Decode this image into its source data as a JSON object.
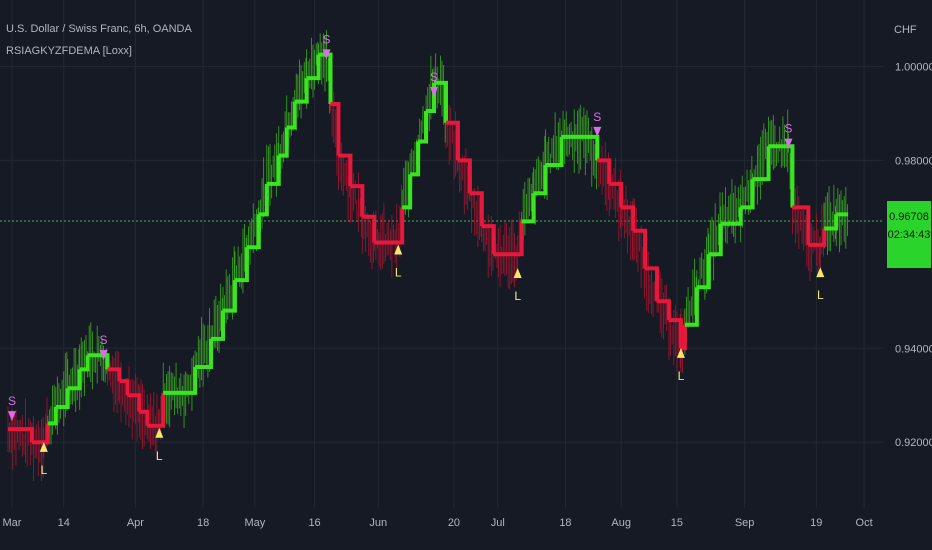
{
  "header": {
    "title": "U.S. Dollar / Swiss Franc, 6h, OANDA",
    "indicator": "RSIAGKYZFDEMA [Loxx]",
    "currency": "CHF"
  },
  "last_price": {
    "value": "0.96708",
    "countdown": "02:34:43"
  },
  "colors": {
    "background": "#161a25",
    "bull": "#39e51f",
    "bear": "#e8173c",
    "long_marker": "#f5e86e",
    "short_marker": "#d96ee8",
    "grid": "#232834"
  },
  "chart_data": {
    "type": "line",
    "title": "U.S. Dollar / Swiss Franc, 6h, OANDA",
    "y_axis": {
      "range": [
        0.906,
        1.012
      ],
      "ticks": [
        "1.00000",
        "0.98000",
        "0.94000",
        "0.92000"
      ],
      "tick_values": [
        1.0,
        0.98,
        0.94,
        0.92
      ]
    },
    "x_axis": {
      "ticks": [
        "Mar",
        "14",
        "Apr",
        "18",
        "May",
        "16",
        "Jun",
        "20",
        "Jul",
        "18",
        "Aug",
        "15",
        "Sep",
        "19",
        "Oct"
      ],
      "tick_dates": [
        "2022-03-01",
        "2022-03-14",
        "2022-04-01",
        "2022-04-18",
        "2022-05-01",
        "2022-05-16",
        "2022-06-01",
        "2022-06-20",
        "2022-07-01",
        "2022-07-18",
        "2022-08-01",
        "2022-08-15",
        "2022-09-01",
        "2022-09-19",
        "2022-10-01"
      ]
    },
    "signals": [
      {
        "label": "S",
        "type": "short",
        "date": "2022-03-01",
        "price": 0.9245
      },
      {
        "label": "L",
        "type": "long",
        "date": "2022-03-09",
        "price": 0.9205
      },
      {
        "label": "S",
        "type": "short",
        "date": "2022-03-24",
        "price": 0.9375
      },
      {
        "label": "L",
        "type": "long",
        "date": "2022-04-07",
        "price": 0.9235
      },
      {
        "label": "S",
        "type": "short",
        "date": "2022-05-19",
        "price": 1.0015
      },
      {
        "label": "L",
        "type": "long",
        "date": "2022-06-06",
        "price": 0.9625
      },
      {
        "label": "S",
        "type": "short",
        "date": "2022-06-15",
        "price": 0.9935
      },
      {
        "label": "L",
        "type": "long",
        "date": "2022-07-06",
        "price": 0.9575
      },
      {
        "label": "S",
        "type": "short",
        "date": "2022-07-26",
        "price": 0.985
      },
      {
        "label": "L",
        "type": "long",
        "date": "2022-08-16",
        "price": 0.9405
      },
      {
        "label": "S",
        "type": "short",
        "date": "2022-09-12",
        "price": 0.9825
      },
      {
        "label": "L",
        "type": "long",
        "date": "2022-09-20",
        "price": 0.9577
      }
    ],
    "last_price": 0.96708,
    "series": [
      {
        "kind": "stepped_dema",
        "points": [
          [
            "2022-02-28",
            0.9228,
            "bear"
          ],
          [
            "2022-03-06",
            0.92,
            "bear"
          ],
          [
            "2022-03-09",
            0.92,
            "bear"
          ],
          [
            "2022-03-10",
            0.924,
            "bull"
          ],
          [
            "2022-03-12",
            0.9275,
            "bull"
          ],
          [
            "2022-03-15",
            0.9315,
            "bull"
          ],
          [
            "2022-03-18",
            0.9355,
            "bull"
          ],
          [
            "2022-03-20",
            0.9385,
            "bull"
          ],
          [
            "2022-03-24",
            0.9385,
            "bull"
          ],
          [
            "2022-03-25",
            0.9355,
            "bear"
          ],
          [
            "2022-03-28",
            0.933,
            "bear"
          ],
          [
            "2022-03-30",
            0.93,
            "bear"
          ],
          [
            "2022-04-02",
            0.9265,
            "bear"
          ],
          [
            "2022-04-04",
            0.9235,
            "bear"
          ],
          [
            "2022-04-07",
            0.9235,
            "bear"
          ],
          [
            "2022-04-08",
            0.9305,
            "bull"
          ],
          [
            "2022-04-14",
            0.9305,
            "bull"
          ],
          [
            "2022-04-16",
            0.936,
            "bull"
          ],
          [
            "2022-04-20",
            0.942,
            "bull"
          ],
          [
            "2022-04-23",
            0.948,
            "bull"
          ],
          [
            "2022-04-26",
            0.9545,
            "bull"
          ],
          [
            "2022-04-29",
            0.9615,
            "bull"
          ],
          [
            "2022-05-02",
            0.9685,
            "bull"
          ],
          [
            "2022-05-04",
            0.975,
            "bull"
          ],
          [
            "2022-05-07",
            0.981,
            "bull"
          ],
          [
            "2022-05-09",
            0.987,
            "bull"
          ],
          [
            "2022-05-11",
            0.9925,
            "bull"
          ],
          [
            "2022-05-14",
            0.9975,
            "bull"
          ],
          [
            "2022-05-17",
            1.0025,
            "bull"
          ],
          [
            "2022-05-19",
            1.0025,
            "bull"
          ],
          [
            "2022-05-20",
            0.992,
            "bear"
          ],
          [
            "2022-05-22",
            0.981,
            "bear"
          ],
          [
            "2022-05-25",
            0.9745,
            "bear"
          ],
          [
            "2022-05-28",
            0.968,
            "bear"
          ],
          [
            "2022-05-31",
            0.9625,
            "bear"
          ],
          [
            "2022-06-06",
            0.9625,
            "bear"
          ],
          [
            "2022-06-07",
            0.97,
            "bull"
          ],
          [
            "2022-06-09",
            0.977,
            "bull"
          ],
          [
            "2022-06-11",
            0.984,
            "bull"
          ],
          [
            "2022-06-13",
            0.9905,
            "bull"
          ],
          [
            "2022-06-15",
            0.9965,
            "bull"
          ],
          [
            "2022-06-17",
            0.9965,
            "bull"
          ],
          [
            "2022-06-18",
            0.988,
            "bear"
          ],
          [
            "2022-06-21",
            0.98,
            "bear"
          ],
          [
            "2022-06-24",
            0.973,
            "bear"
          ],
          [
            "2022-06-27",
            0.966,
            "bear"
          ],
          [
            "2022-06-30",
            0.96,
            "bear"
          ],
          [
            "2022-07-06",
            0.96,
            "bear"
          ],
          [
            "2022-07-07",
            0.967,
            "bull"
          ],
          [
            "2022-07-10",
            0.973,
            "bull"
          ],
          [
            "2022-07-13",
            0.979,
            "bull"
          ],
          [
            "2022-07-17",
            0.985,
            "bull"
          ],
          [
            "2022-07-23",
            0.985,
            "bull"
          ],
          [
            "2022-07-26",
            0.98,
            "bear"
          ],
          [
            "2022-07-29",
            0.975,
            "bear"
          ],
          [
            "2022-08-01",
            0.97,
            "bear"
          ],
          [
            "2022-08-04",
            0.965,
            "bear"
          ],
          [
            "2022-08-07",
            0.957,
            "bear"
          ],
          [
            "2022-08-10",
            0.95,
            "bear"
          ],
          [
            "2022-08-13",
            0.946,
            "bear"
          ],
          [
            "2022-08-16",
            0.94,
            "bear"
          ],
          [
            "2022-08-17",
            0.945,
            "bull"
          ],
          [
            "2022-08-20",
            0.953,
            "bull"
          ],
          [
            "2022-08-23",
            0.96,
            "bull"
          ],
          [
            "2022-08-26",
            0.9665,
            "bull"
          ],
          [
            "2022-08-31",
            0.97,
            "bull"
          ],
          [
            "2022-09-03",
            0.976,
            "bull"
          ],
          [
            "2022-09-07",
            0.983,
            "bull"
          ],
          [
            "2022-09-12",
            0.983,
            "bull"
          ],
          [
            "2022-09-13",
            0.97,
            "bear"
          ],
          [
            "2022-09-17",
            0.962,
            "bear"
          ],
          [
            "2022-09-20",
            0.962,
            "bear"
          ],
          [
            "2022-09-21",
            0.9655,
            "bull"
          ],
          [
            "2022-09-24",
            0.9685,
            "bull"
          ],
          [
            "2022-09-27",
            0.9685,
            "bull"
          ]
        ]
      }
    ]
  }
}
